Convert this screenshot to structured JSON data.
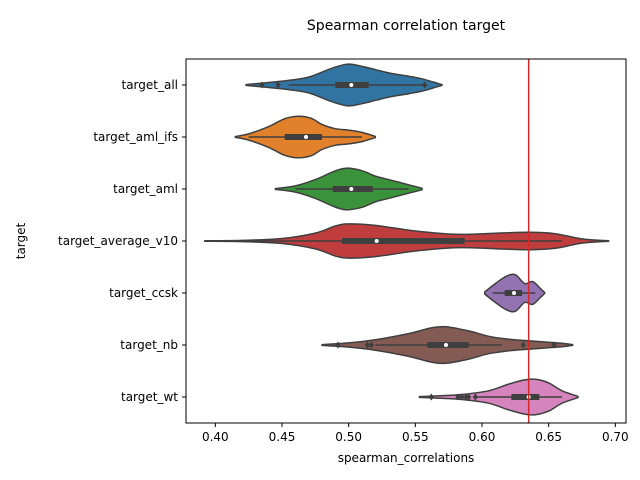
{
  "chart_data": {
    "type": "violin",
    "title": "Spearman correlation target",
    "xlabel": "spearman_correlations",
    "ylabel": "target",
    "xlim": [
      0.378,
      0.708
    ],
    "xticks": [
      "0.40",
      "0.45",
      "0.50",
      "0.55",
      "0.60",
      "0.65",
      "0.70"
    ],
    "xtick_values": [
      0.4,
      0.45,
      0.5,
      0.55,
      0.6,
      0.65,
      0.7
    ],
    "reference_line": {
      "x": 0.635,
      "color": "#d62728"
    },
    "grid": false,
    "categories": [
      "target_all",
      "target_aml_ifs",
      "target_aml",
      "target_average_v10",
      "target_ccsk",
      "target_nb",
      "target_wt"
    ],
    "series": [
      {
        "category": "target_all",
        "color": "#3274a1",
        "density": [
          [
            0.423,
            0.02
          ],
          [
            0.44,
            0.12
          ],
          [
            0.455,
            0.22
          ],
          [
            0.47,
            0.38
          ],
          [
            0.485,
            0.75
          ],
          [
            0.495,
            0.95
          ],
          [
            0.502,
            1.0
          ],
          [
            0.515,
            0.82
          ],
          [
            0.53,
            0.58
          ],
          [
            0.545,
            0.42
          ],
          [
            0.555,
            0.3
          ],
          [
            0.563,
            0.15
          ],
          [
            0.57,
            0.02
          ]
        ],
        "whisker": [
          0.455,
          0.557
        ],
        "q1": 0.49,
        "q3": 0.515,
        "median": 0.502,
        "outliers": [
          0.435,
          0.447,
          0.557
        ]
      },
      {
        "category": "target_aml_ifs",
        "color": "#e1812c",
        "density": [
          [
            0.415,
            0.02
          ],
          [
            0.425,
            0.15
          ],
          [
            0.44,
            0.5
          ],
          [
            0.452,
            0.88
          ],
          [
            0.462,
            1.0
          ],
          [
            0.472,
            0.9
          ],
          [
            0.48,
            0.6
          ],
          [
            0.49,
            0.4
          ],
          [
            0.5,
            0.33
          ],
          [
            0.51,
            0.22
          ],
          [
            0.52,
            0.03
          ]
        ],
        "whisker": [
          0.425,
          0.51
        ],
        "q1": 0.452,
        "q3": 0.48,
        "median": 0.468,
        "outliers": []
      },
      {
        "category": "target_aml",
        "color": "#3a923a",
        "density": [
          [
            0.445,
            0.02
          ],
          [
            0.46,
            0.15
          ],
          [
            0.475,
            0.45
          ],
          [
            0.488,
            0.82
          ],
          [
            0.498,
            1.0
          ],
          [
            0.51,
            0.88
          ],
          [
            0.52,
            0.62
          ],
          [
            0.532,
            0.42
          ],
          [
            0.545,
            0.2
          ],
          [
            0.555,
            0.04
          ]
        ],
        "whisker": [
          0.46,
          0.545
        ],
        "q1": 0.488,
        "q3": 0.518,
        "median": 0.502,
        "outliers": []
      },
      {
        "category": "target_average_v10",
        "color": "#c03d3e",
        "density": [
          [
            0.392,
            0.01
          ],
          [
            0.42,
            0.03
          ],
          [
            0.45,
            0.12
          ],
          [
            0.475,
            0.38
          ],
          [
            0.49,
            0.72
          ],
          [
            0.5,
            0.82
          ],
          [
            0.52,
            0.75
          ],
          [
            0.55,
            0.48
          ],
          [
            0.58,
            0.32
          ],
          [
            0.61,
            0.37
          ],
          [
            0.635,
            0.42
          ],
          [
            0.655,
            0.35
          ],
          [
            0.675,
            0.1
          ],
          [
            0.695,
            0.01
          ]
        ],
        "whisker": [
          0.425,
          0.66
        ],
        "q1": 0.495,
        "q3": 0.587,
        "median": 0.521,
        "outliers": []
      },
      {
        "category": "target_ccsk",
        "color": "#9372b2",
        "density": [
          [
            0.602,
            0.05
          ],
          [
            0.61,
            0.45
          ],
          [
            0.618,
            0.8
          ],
          [
            0.625,
            0.88
          ],
          [
            0.632,
            0.45
          ],
          [
            0.638,
            0.55
          ],
          [
            0.644,
            0.2
          ],
          [
            0.647,
            0.02
          ]
        ],
        "whisker": [
          0.608,
          0.64
        ],
        "q1": 0.617,
        "q3": 0.63,
        "median": 0.624,
        "outliers": []
      },
      {
        "category": "target_nb",
        "color": "#845b53",
        "density": [
          [
            0.48,
            0.02
          ],
          [
            0.5,
            0.1
          ],
          [
            0.52,
            0.25
          ],
          [
            0.545,
            0.55
          ],
          [
            0.562,
            0.82
          ],
          [
            0.573,
            0.88
          ],
          [
            0.59,
            0.68
          ],
          [
            0.605,
            0.42
          ],
          [
            0.62,
            0.28
          ],
          [
            0.64,
            0.18
          ],
          [
            0.66,
            0.08
          ],
          [
            0.668,
            0.02
          ]
        ],
        "whisker": [
          0.52,
          0.615
        ],
        "q1": 0.559,
        "q3": 0.59,
        "median": 0.573,
        "outliers": [
          0.492,
          0.514,
          0.517,
          0.631,
          0.654
        ]
      },
      {
        "category": "target_wt",
        "color": "#d684bd",
        "density": [
          [
            0.553,
            0.02
          ],
          [
            0.565,
            0.05
          ],
          [
            0.585,
            0.12
          ],
          [
            0.605,
            0.3
          ],
          [
            0.62,
            0.62
          ],
          [
            0.632,
            0.82
          ],
          [
            0.64,
            0.85
          ],
          [
            0.65,
            0.68
          ],
          [
            0.66,
            0.3
          ],
          [
            0.672,
            0.03
          ]
        ],
        "whisker": [
          0.595,
          0.66
        ],
        "q1": 0.622,
        "q3": 0.643,
        "median": 0.635,
        "outliers": [
          0.562,
          0.582,
          0.585,
          0.588,
          0.59,
          0.595
        ]
      }
    ]
  }
}
